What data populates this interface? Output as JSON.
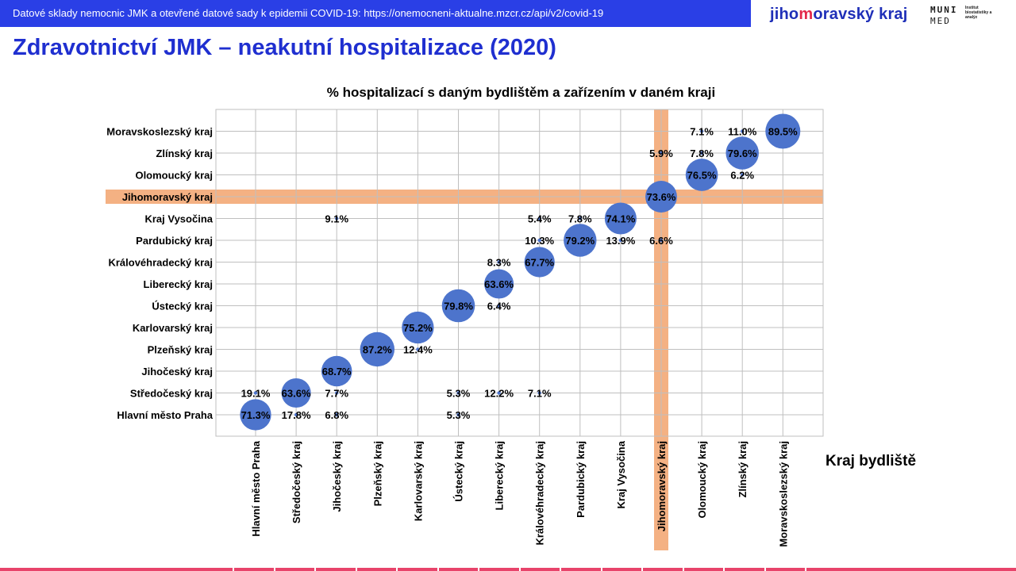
{
  "header": {
    "banner_text": "Datové sklady nemocnic JMK a otevřené datové sady k epidemii COVID-19: https://onemocneni-aktualne.mzcr.cz/api/v2/covid-19",
    "logo_jmk_pre": "jiho",
    "logo_jmk_mid": "m",
    "logo_jmk_post": "oravský kraj",
    "logo_muni_top": "MUNI",
    "logo_muni_bottom": "MED",
    "logo_muni_institute": "Institut biostatistiky a analýz"
  },
  "page": {
    "title": "Zdravotnictví JMK – neakutní hospitalizace (2020)"
  },
  "colors": {
    "bubble": "#4d74cc",
    "highlight": "#f4b183",
    "grid": "#bfbfbf",
    "banner": "#2a3fe6",
    "title": "#1f2fd0",
    "footer": "#e8436a"
  },
  "chart_data": {
    "type": "scatter",
    "title": "% hospitalizací  s daným bydlištěm a zařízením  v daném kraji",
    "xlabel": "Kraj bydliště",
    "ylabel": "",
    "x_categories": [
      "Hlavní město Praha",
      "Středočeský kraj",
      "Jihočeský kraj",
      "Plzeňský kraj",
      "Karlovarský kraj",
      "Ústecký kraj",
      "Liberecký kraj",
      "Královéhradecký kraj",
      "Pardubický kraj",
      "Kraj Vysočina",
      "Jihomoravský kraj",
      "Olomoucký kraj",
      "Zlínský kraj",
      "Moravskoslezský kraj"
    ],
    "y_categories": [
      "Hlavní město Praha",
      "Středočeský kraj",
      "Jihočeský kraj",
      "Plzeňský kraj",
      "Karlovarský kraj",
      "Ústecký kraj",
      "Liberecký kraj",
      "Královéhradecký kraj",
      "Pardubický kraj",
      "Kraj Vysočina",
      "Jihomoravský kraj",
      "Olomoucký kraj",
      "Zlínský kraj",
      "Moravskoslezský kraj"
    ],
    "y_tick_labels": [
      "Hlavní město Praha",
      "Středočeský kraj",
      "Jihočeský kraj",
      "Plzeňský  kraj",
      "Karlovarský kraj",
      "Ústecký kraj",
      "Liberecký kraj",
      "Královéhradecký kraj",
      "Pardubický kraj",
      "Kraj Vysočina",
      "Jihomoravský  kraj",
      "Olomoucký  kraj",
      "Zlínský  kraj",
      "Moravskoslezský kraj"
    ],
    "highlight_category": "Jihomoravský kraj",
    "grid": true,
    "points": [
      {
        "x": "Hlavní město Praha",
        "y": "Hlavní město Praha",
        "value": 71.3,
        "label": "71.3%"
      },
      {
        "x": "Hlavní město Praha",
        "y": "Středočeský kraj",
        "value": 19.1,
        "label": "19.1%"
      },
      {
        "x": "Středočeský kraj",
        "y": "Středočeský kraj",
        "value": 63.6,
        "label": "63.6%"
      },
      {
        "x": "Středočeský kraj",
        "y": "Hlavní město Praha",
        "value": 17.8,
        "label": "17.8%"
      },
      {
        "x": "Jihočeský kraj",
        "y": "Jihočeský kraj",
        "value": 68.7,
        "label": "68.7%"
      },
      {
        "x": "Jihočeský kraj",
        "y": "Středočeský kraj",
        "value": 7.7,
        "label": "7.7%"
      },
      {
        "x": "Jihočeský kraj",
        "y": "Hlavní město Praha",
        "value": 6.8,
        "label": "6.8%"
      },
      {
        "x": "Jihočeský kraj",
        "y": "Kraj Vysočina",
        "value": 9.1,
        "label": "9.1%"
      },
      {
        "x": "Plzeňský kraj",
        "y": "Plzeňský kraj",
        "value": 87.2,
        "label": "87.2%"
      },
      {
        "x": "Karlovarský kraj",
        "y": "Karlovarský kraj",
        "value": 75.2,
        "label": "75.2%"
      },
      {
        "x": "Karlovarský kraj",
        "y": "Plzeňský kraj",
        "value": 12.4,
        "label": "12.4%"
      },
      {
        "x": "Ústecký kraj",
        "y": "Ústecký kraj",
        "value": 79.8,
        "label": "79.8%"
      },
      {
        "x": "Ústecký kraj",
        "y": "Středočeský kraj",
        "value": 5.3,
        "label": "5.3%"
      },
      {
        "x": "Ústecký kraj",
        "y": "Hlavní město Praha",
        "value": 5.3,
        "label": "5.3%"
      },
      {
        "x": "Liberecký kraj",
        "y": "Liberecký kraj",
        "value": 63.6,
        "label": "63.6%"
      },
      {
        "x": "Liberecký kraj",
        "y": "Královéhradecký kraj",
        "value": 8.3,
        "label": "8.3%"
      },
      {
        "x": "Liberecký kraj",
        "y": "Ústecký kraj",
        "value": 6.4,
        "label": "6.4%"
      },
      {
        "x": "Liberecký kraj",
        "y": "Středočeský kraj",
        "value": 12.2,
        "label": "12.2%"
      },
      {
        "x": "Královéhradecký kraj",
        "y": "Královéhradecký kraj",
        "value": 67.7,
        "label": "67.7%"
      },
      {
        "x": "Královéhradecký kraj",
        "y": "Kraj Vysočina",
        "value": 5.4,
        "label": "5.4%"
      },
      {
        "x": "Královéhradecký kraj",
        "y": "Pardubický kraj",
        "value": 10.3,
        "label": "10.3%"
      },
      {
        "x": "Královéhradecký kraj",
        "y": "Středočeský kraj",
        "value": 7.1,
        "label": "7.1%"
      },
      {
        "x": "Pardubický kraj",
        "y": "Pardubický kraj",
        "value": 79.2,
        "label": "79.2%"
      },
      {
        "x": "Pardubický kraj",
        "y": "Kraj Vysočina",
        "value": 7.8,
        "label": "7.8%"
      },
      {
        "x": "Kraj Vysočina",
        "y": "Kraj Vysočina",
        "value": 74.1,
        "label": "74.1%"
      },
      {
        "x": "Kraj Vysočina",
        "y": "Pardubický kraj",
        "value": 13.9,
        "label": "13.9%"
      },
      {
        "x": "Jihomoravský kraj",
        "y": "Jihomoravský kraj",
        "value": 73.6,
        "label": "73.6%"
      },
      {
        "x": "Jihomoravský kraj",
        "y": "Zlínský kraj",
        "value": 5.9,
        "label": "5.9%"
      },
      {
        "x": "Jihomoravský kraj",
        "y": "Pardubický kraj",
        "value": 6.6,
        "label": "6.6%"
      },
      {
        "x": "Olomoucký kraj",
        "y": "Olomoucký kraj",
        "value": 76.5,
        "label": "76.5%"
      },
      {
        "x": "Olomoucký kraj",
        "y": "Moravskoslezský kraj",
        "value": 7.1,
        "label": "7.1%"
      },
      {
        "x": "Olomoucký kraj",
        "y": "Zlínský kraj",
        "value": 7.8,
        "label": "7.8%"
      },
      {
        "x": "Zlínský kraj",
        "y": "Zlínský kraj",
        "value": 79.6,
        "label": "79.6%"
      },
      {
        "x": "Zlínský kraj",
        "y": "Moravskoslezský kraj",
        "value": 11.0,
        "label": "11.0%"
      },
      {
        "x": "Zlínský kraj",
        "y": "Olomoucký kraj",
        "value": 6.2,
        "label": "6.2%"
      },
      {
        "x": "Moravskoslezský kraj",
        "y": "Moravskoslezský kraj",
        "value": 89.5,
        "label": "89.5%"
      }
    ]
  }
}
